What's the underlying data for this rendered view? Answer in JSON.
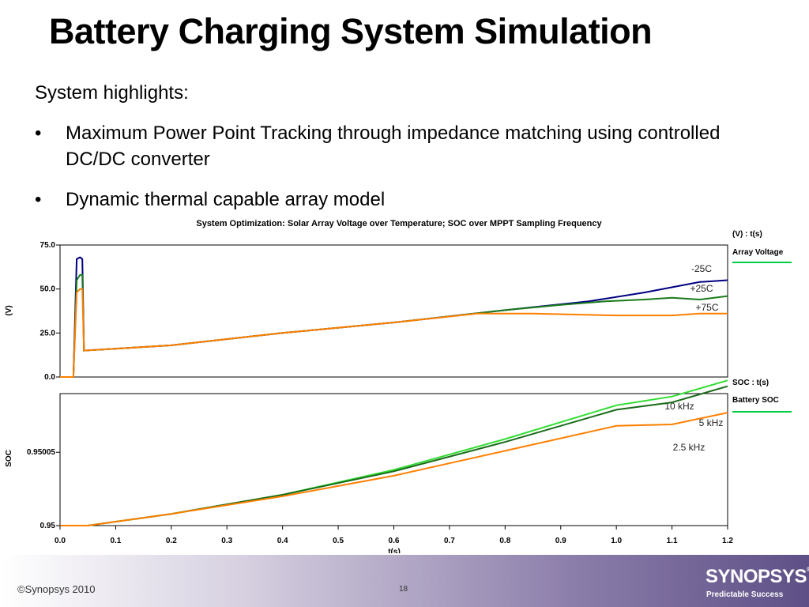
{
  "slide": {
    "title": "Battery Charging System Simulation",
    "intro": "System highlights:",
    "bullets": [
      "Maximum Power Point Tracking through impedance matching using controlled DC/DC converter",
      "Dynamic thermal capable array model"
    ],
    "bullet_char": "•"
  },
  "footer": {
    "copyright": "©Synopsys 2010",
    "page_number": "18",
    "logo": "SYNOPSYS",
    "logo_mark": "®",
    "tagline": "Predictable Success"
  },
  "chart_data": [
    {
      "type": "line",
      "title": "System Optimization: Solar Array Voltage over Temperature; SOC over MPPT Sampling Frequency",
      "ylabel": "(V)",
      "xlim": [
        0,
        1.2
      ],
      "ylim": [
        0,
        75
      ],
      "yticks": [
        "75.0",
        "50.0",
        "25.0",
        "0.0"
      ],
      "legend_header": "(V) : t(s)",
      "legend_entry": "Array Voltage",
      "legend_color": "#00cc44",
      "series": [
        {
          "name": "-25C",
          "color": "#000080",
          "x": [
            0.0,
            0.024,
            0.03,
            0.036,
            0.04,
            0.043,
            0.2,
            0.4,
            0.6,
            0.8,
            0.95,
            1.05,
            1.15,
            1.2
          ],
          "y": [
            0.0,
            0.0,
            67,
            68,
            67,
            15,
            18,
            25,
            31,
            38,
            43,
            48,
            54,
            55
          ]
        },
        {
          "name": "+25C",
          "color": "#1a7a1a",
          "x": [
            0.0,
            0.024,
            0.03,
            0.036,
            0.04,
            0.043,
            0.2,
            0.4,
            0.6,
            0.8,
            0.9,
            0.98,
            1.05,
            1.1,
            1.15,
            1.2
          ],
          "y": [
            0.0,
            0.0,
            55,
            58,
            58,
            15,
            18,
            25,
            31,
            38,
            41,
            43,
            44,
            45,
            44,
            46
          ]
        },
        {
          "name": "+75C",
          "color": "#ff7f00",
          "x": [
            0.0,
            0.024,
            0.03,
            0.036,
            0.04,
            0.043,
            0.2,
            0.4,
            0.6,
            0.75,
            0.85,
            1.0,
            1.1,
            1.15,
            1.2
          ],
          "y": [
            0.0,
            0.0,
            48,
            50,
            50,
            15,
            18,
            25,
            31,
            36,
            36,
            35,
            35,
            36,
            36
          ]
        }
      ]
    },
    {
      "type": "line",
      "ylabel": "SOC",
      "xlabel": "t(s)",
      "xlim": [
        0,
        1.2
      ],
      "ylim": [
        0.95,
        0.95009
      ],
      "yticks": [
        "0.95005",
        "0.95"
      ],
      "xticks": [
        "0.0",
        "0.1",
        "0.2",
        "0.3",
        "0.4",
        "0.5",
        "0.6",
        "0.7",
        "0.8",
        "0.9",
        "1.0",
        "1.1",
        "1.2"
      ],
      "legend_header": "SOC : t(s)",
      "legend_entry": "Battery SOC",
      "legend_color": "#00cc44",
      "series": [
        {
          "name": "10 kHz",
          "color": "#33dd33",
          "x": [
            0.0,
            0.05,
            0.2,
            0.4,
            0.6,
            0.8,
            1.0,
            1.1,
            1.2
          ],
          "y": [
            0.95,
            0.95,
            0.950008,
            0.950021,
            0.950038,
            0.950059,
            0.950082,
            0.950088,
            0.950099
          ]
        },
        {
          "name": "5 kHz",
          "color": "#1a6b1a",
          "x": [
            0.0,
            0.05,
            0.2,
            0.4,
            0.6,
            0.8,
            1.0,
            1.1,
            1.2
          ],
          "y": [
            0.95,
            0.95,
            0.950008,
            0.950021,
            0.950037,
            0.950057,
            0.950079,
            0.950084,
            0.950095
          ]
        },
        {
          "name": "2.5 kHz",
          "color": "#ff7f00",
          "x": [
            0.0,
            0.05,
            0.2,
            0.4,
            0.6,
            0.8,
            1.0,
            1.1,
            1.2
          ],
          "y": [
            0.95,
            0.95,
            0.950008,
            0.95002,
            0.950034,
            0.950051,
            0.950068,
            0.950069,
            0.950077
          ]
        }
      ]
    }
  ]
}
